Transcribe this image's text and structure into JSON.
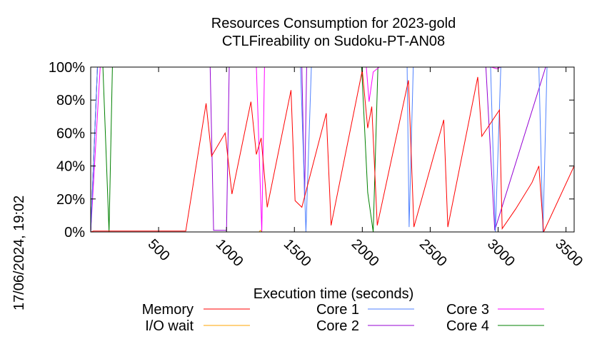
{
  "chart_data": {
    "type": "line",
    "title": "Resources Consumption for 2023-gold",
    "subtitle": "CTLFireability on Sudoku-PT-AN08",
    "xlabel": "Execution time (seconds)",
    "side_label": "17/06/2024, 19:02",
    "xlim": [
      0,
      3560
    ],
    "ylim": [
      0,
      100
    ],
    "xticks": [
      500,
      1000,
      1500,
      2000,
      2500,
      3000,
      3500
    ],
    "xtick_labels": [
      "500",
      "1000",
      "1500",
      "2000",
      "2500",
      "3000",
      "3500"
    ],
    "yticks": [
      0,
      20,
      40,
      60,
      80,
      100
    ],
    "ytick_labels": [
      "0%",
      "20%",
      "40%",
      "60%",
      "80%",
      "100%"
    ],
    "grid": false,
    "legend_position": "bottom",
    "series": [
      {
        "name": "Memory",
        "color": "#ff0000",
        "x": [
          0,
          20,
          700,
          850,
          890,
          990,
          1040,
          1180,
          1220,
          1255,
          1300,
          1475,
          1505,
          1555,
          1735,
          1770,
          2000,
          2040,
          2070,
          2110,
          2340,
          2380,
          2600,
          2630,
          2850,
          2880,
          3010,
          3030,
          3130,
          3250,
          3300,
          3335,
          3560
        ],
        "y": [
          0,
          0.5,
          0.5,
          78,
          46,
          60,
          23,
          79,
          47,
          57,
          15,
          86,
          19,
          15,
          72,
          4,
          98,
          63,
          76,
          4,
          92,
          3,
          68,
          3,
          94,
          58,
          74,
          2,
          14,
          30,
          40,
          0,
          40
        ]
      },
      {
        "name": "I/O wait",
        "color": "#ffa500",
        "x": [
          0,
          1240,
          1250,
          1260,
          3560
        ],
        "y": [
          0,
          0,
          1,
          0,
          0
        ]
      },
      {
        "name": "Core 1",
        "color": "#4f81ff",
        "x": [
          0,
          50,
          110,
          1545,
          1585,
          1625,
          2020,
          2330,
          2345,
          2375,
          2385,
          2945,
          2980,
          3020,
          3300,
          3330,
          3360,
          3560
        ],
        "y": [
          0,
          100,
          100,
          100,
          0,
          100,
          100,
          100,
          3,
          100,
          100,
          100,
          0,
          100,
          100,
          0,
          100,
          100
        ]
      },
      {
        "name": "Core 2",
        "color": "#9400d3",
        "x": [
          0,
          50,
          880,
          905,
          1000,
          1020,
          1555,
          1575,
          1590,
          2910,
          2975,
          3350,
          3560
        ],
        "y": [
          0,
          100,
          100,
          1,
          1,
          100,
          100,
          20,
          100,
          100,
          1,
          100,
          100
        ]
      },
      {
        "name": "Core 3",
        "color": "#ff00ff",
        "x": [
          0,
          70,
          100,
          140,
          1220,
          1260,
          1280,
          1325,
          1335,
          2030,
          2050,
          2080,
          2125,
          2950,
          2990,
          3020,
          3340,
          3560
        ],
        "y": [
          0,
          100,
          100,
          100,
          100,
          0,
          100,
          100,
          100,
          100,
          79,
          97,
          100,
          100,
          99,
          100,
          100,
          100
        ]
      },
      {
        "name": "Core 4",
        "color": "#008000",
        "x": [
          0,
          50,
          90,
          135,
          160,
          1995,
          2040,
          2080,
          2115,
          3560
        ],
        "y": [
          0,
          100,
          100,
          0,
          100,
          100,
          24,
          0,
          100,
          100
        ]
      }
    ]
  }
}
